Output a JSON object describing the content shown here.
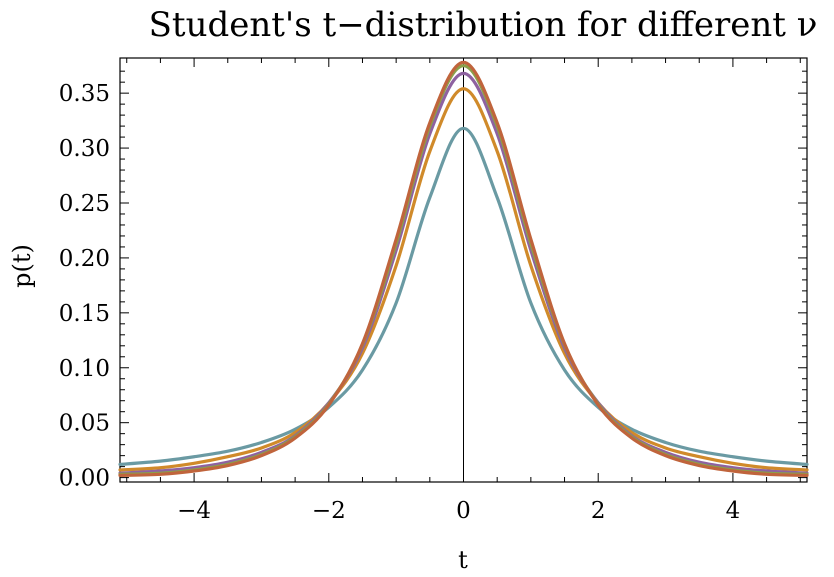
{
  "chart_data": {
    "type": "line",
    "title": "Student's t−distribution for different ν",
    "xlabel": "t",
    "ylabel": "p(t)",
    "xlim": [
      -5.1,
      5.1
    ],
    "ylim": [
      -0.004,
      0.382
    ],
    "x_ticks": [
      -4,
      -2,
      0,
      2,
      4
    ],
    "x_tick_labels": [
      "−4",
      "−2",
      "0",
      "2",
      "4"
    ],
    "y_ticks": [
      0.0,
      0.05,
      0.1,
      0.15,
      0.2,
      0.25,
      0.3,
      0.35
    ],
    "y_tick_labels": [
      "0.00",
      "0.05",
      "0.10",
      "0.15",
      "0.20",
      "0.25",
      "0.30",
      "0.35"
    ],
    "grid": false,
    "x": [
      -5.1,
      -4.5,
      -4.0,
      -3.5,
      -3.0,
      -2.5,
      -2.0,
      -1.5,
      -1.0,
      -0.5,
      0.0,
      0.5,
      1.0,
      1.5,
      2.0,
      2.5,
      3.0,
      3.5,
      4.0,
      4.5,
      5.1
    ],
    "series": [
      {
        "color": "#6a9aa3",
        "values": [
          0.012,
          0.015,
          0.019,
          0.024,
          0.032,
          0.044,
          0.064,
          0.098,
          0.159,
          0.255,
          0.318,
          0.255,
          0.159,
          0.098,
          0.064,
          0.044,
          0.032,
          0.024,
          0.019,
          0.015,
          0.012
        ]
      },
      {
        "color": "#d08a2a",
        "values": [
          0.007,
          0.009,
          0.013,
          0.019,
          0.027,
          0.041,
          0.068,
          0.113,
          0.193,
          0.297,
          0.354,
          0.297,
          0.193,
          0.113,
          0.068,
          0.041,
          0.027,
          0.019,
          0.013,
          0.009,
          0.007
        ]
      },
      {
        "color": "#8e62a0",
        "values": [
          0.004,
          0.006,
          0.009,
          0.014,
          0.023,
          0.038,
          0.068,
          0.118,
          0.207,
          0.313,
          0.368,
          0.313,
          0.207,
          0.118,
          0.068,
          0.038,
          0.023,
          0.014,
          0.009,
          0.006,
          0.004
        ]
      },
      {
        "color": "#8ba04a",
        "values": [
          0.003,
          0.004,
          0.007,
          0.012,
          0.021,
          0.037,
          0.067,
          0.121,
          0.213,
          0.32,
          0.375,
          0.32,
          0.213,
          0.121,
          0.067,
          0.037,
          0.021,
          0.012,
          0.007,
          0.004,
          0.003
        ]
      },
      {
        "color": "#c0643c",
        "values": [
          0.002,
          0.003,
          0.006,
          0.011,
          0.02,
          0.036,
          0.066,
          0.122,
          0.217,
          0.323,
          0.378,
          0.323,
          0.217,
          0.122,
          0.066,
          0.036,
          0.02,
          0.011,
          0.006,
          0.003,
          0.002
        ]
      }
    ]
  }
}
